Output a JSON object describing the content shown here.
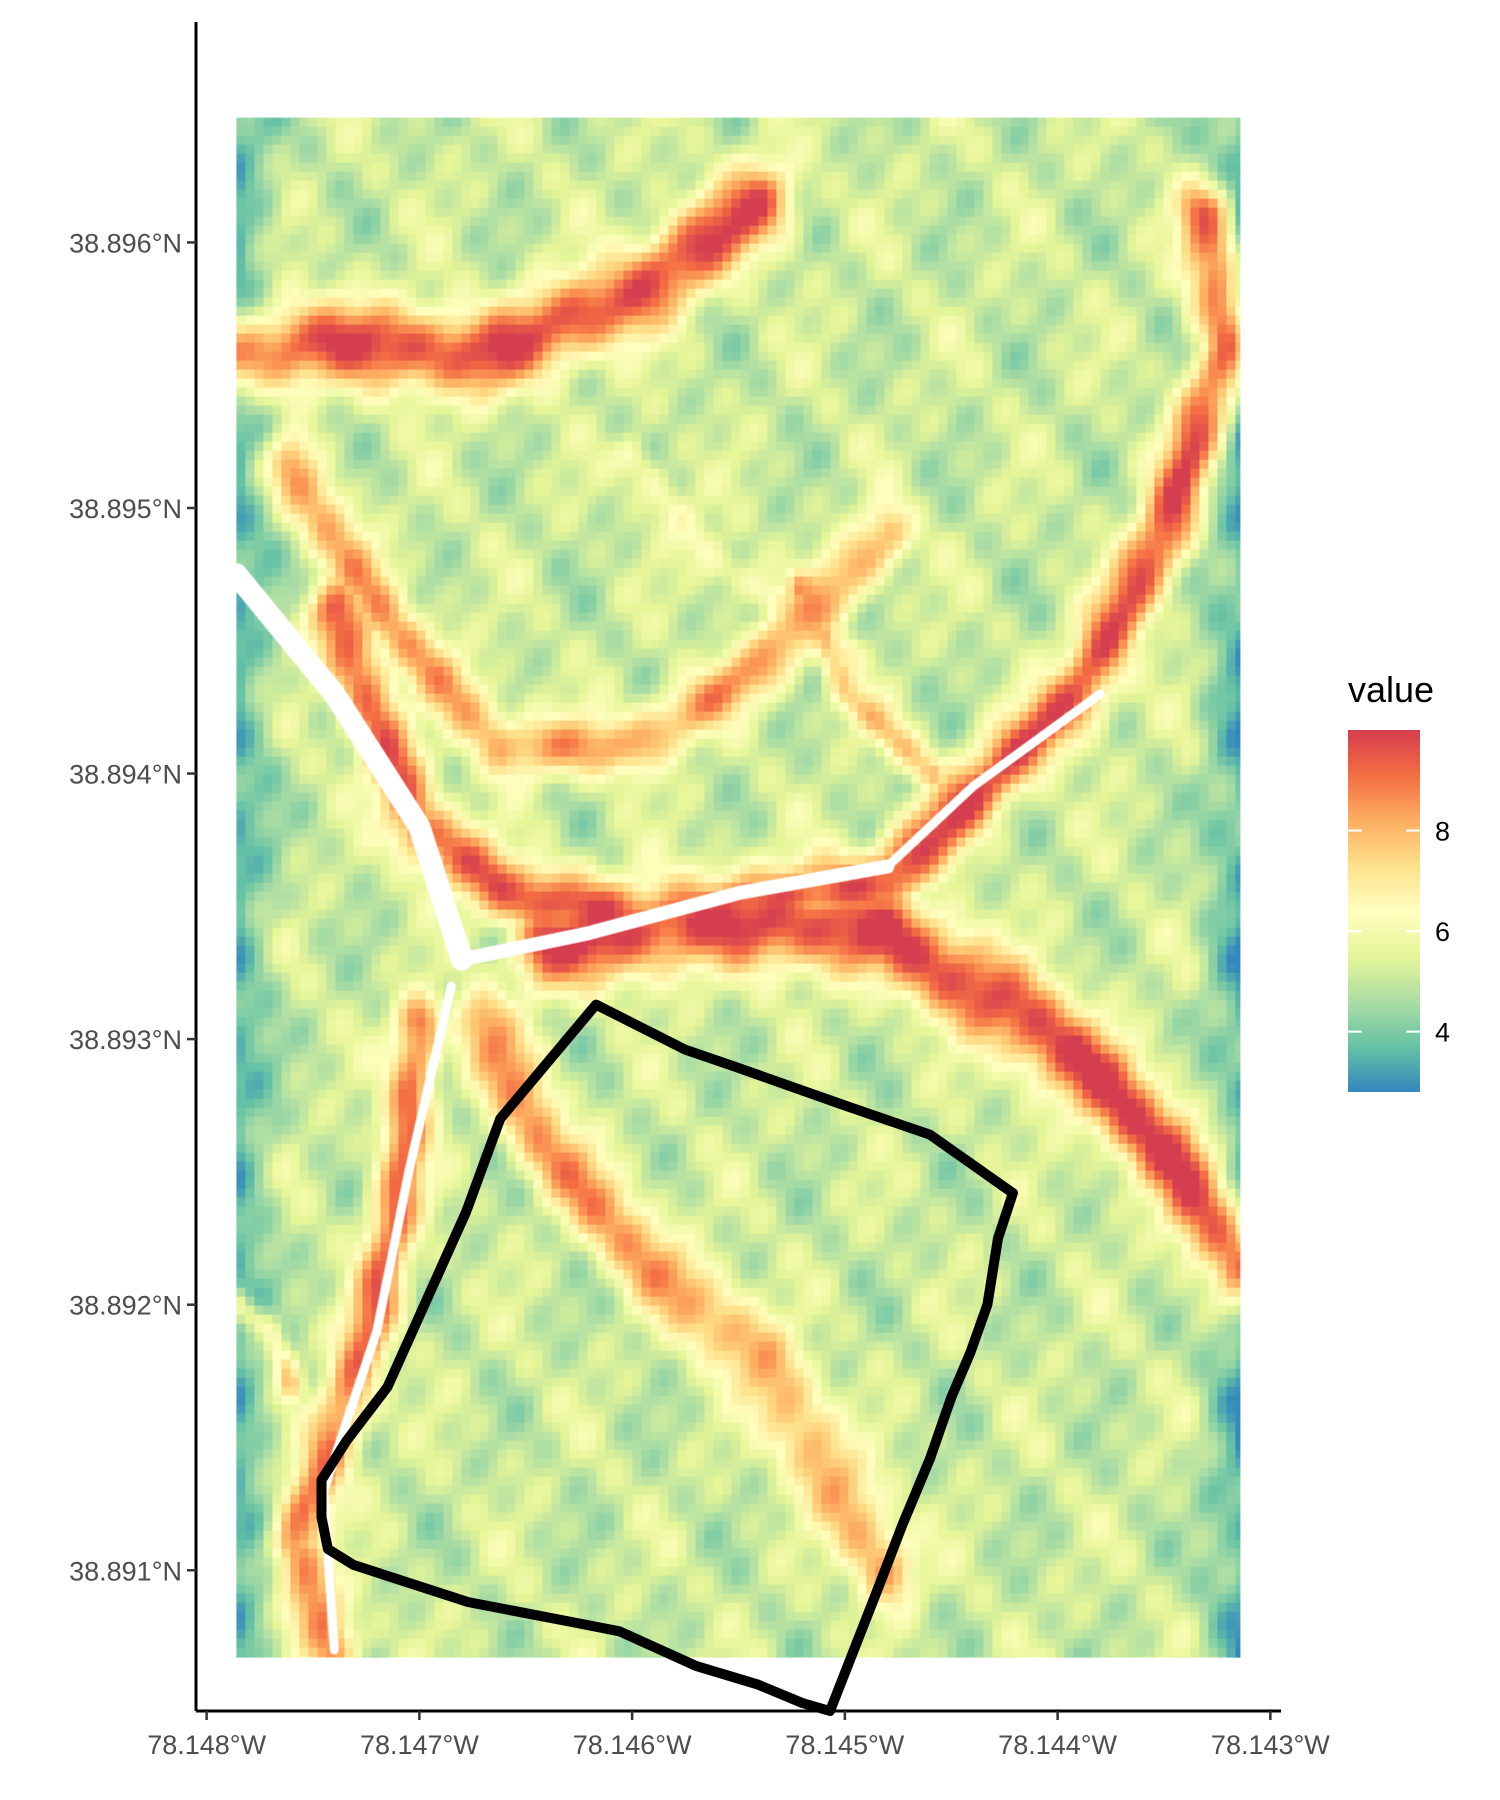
{
  "chart_data": {
    "type": "heatmap",
    "subtype": "raster map with polygon boundary overlay",
    "title": "",
    "xlabel": "",
    "ylabel": "",
    "x_ticks": [
      "78.148°W",
      "78.147°W",
      "78.146°W",
      "78.145°W",
      "78.144°W",
      "78.143°W"
    ],
    "x_tick_values": [
      -78.148,
      -78.147,
      -78.146,
      -78.145,
      -78.144,
      -78.143
    ],
    "y_ticks": [
      "38.896°N",
      "38.895°N",
      "38.894°N",
      "38.893°N",
      "38.892°N",
      "38.891°N"
    ],
    "y_tick_values": [
      38.896,
      38.895,
      38.894,
      38.893,
      38.892,
      38.891
    ],
    "xlim": [
      -78.14805,
      -78.14295
    ],
    "ylim": [
      38.89047,
      38.89683
    ],
    "raster_extent": {
      "lon": [
        -78.14786,
        -78.14314
      ],
      "lat": [
        38.89067,
        38.89647
      ]
    },
    "legend": {
      "title": "value",
      "labels": [
        "4",
        "6",
        "8"
      ],
      "breaks": [
        4,
        6,
        8
      ],
      "range": [
        2.8,
        10.0
      ],
      "palette": [
        "#3288BD",
        "#66C2A5",
        "#ABDDA4",
        "#E6F598",
        "#FFFFBF",
        "#FEE08B",
        "#FDAE61",
        "#F46D43",
        "#D53E4F"
      ],
      "position": "right"
    },
    "polygon": {
      "stroke": "#000000",
      "coordinates": [
        [
          -78.14617,
          38.89313
        ],
        [
          -78.14575,
          38.89296
        ],
        [
          -78.14553,
          38.8929
        ],
        [
          -78.145,
          38.89275
        ],
        [
          -78.1446,
          38.89264
        ],
        [
          -78.14421,
          38.89242
        ],
        [
          -78.14428,
          38.89225
        ],
        [
          -78.14433,
          38.892
        ],
        [
          -78.14441,
          38.89182
        ],
        [
          -78.1445,
          38.89165
        ],
        [
          -78.1446,
          38.89142
        ],
        [
          -78.14473,
          38.89117
        ],
        [
          -78.14485,
          38.89092
        ],
        [
          -78.14507,
          38.89047
        ],
        [
          -78.1452,
          38.8905
        ],
        [
          -78.14541,
          38.89057
        ],
        [
          -78.1457,
          38.89064
        ],
        [
          -78.14606,
          38.89077
        ],
        [
          -78.14625,
          38.8908
        ],
        [
          -78.14677,
          38.89088
        ],
        [
          -78.14731,
          38.89102
        ],
        [
          -78.14743,
          38.89108
        ],
        [
          -78.14746,
          38.8912
        ],
        [
          -78.14746,
          38.89134
        ],
        [
          -78.14734,
          38.89149
        ],
        [
          -78.14715,
          38.89169
        ],
        [
          -78.14678,
          38.89235
        ],
        [
          -78.14662,
          38.8927
        ]
      ]
    }
  }
}
